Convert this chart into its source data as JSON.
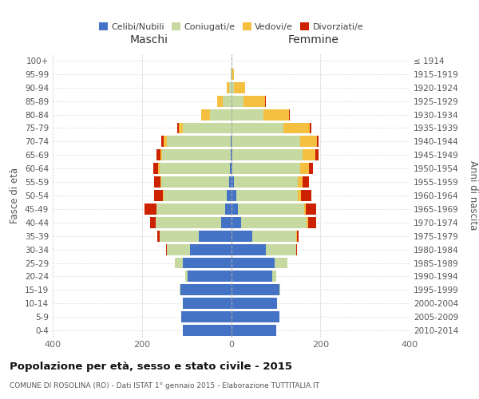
{
  "age_groups": [
    "0-4",
    "5-9",
    "10-14",
    "15-19",
    "20-24",
    "25-29",
    "30-34",
    "35-39",
    "40-44",
    "45-49",
    "50-54",
    "55-59",
    "60-64",
    "65-69",
    "70-74",
    "75-79",
    "80-84",
    "85-89",
    "90-94",
    "95-99",
    "100+"
  ],
  "birth_years": [
    "2010-2014",
    "2005-2009",
    "2000-2004",
    "1995-1999",
    "1990-1994",
    "1985-1989",
    "1980-1984",
    "1975-1979",
    "1970-1974",
    "1965-1969",
    "1960-1964",
    "1955-1959",
    "1950-1954",
    "1945-1949",
    "1940-1944",
    "1935-1939",
    "1930-1934",
    "1925-1929",
    "1920-1924",
    "1915-1919",
    "≤ 1914"
  ],
  "male_celibi": [
    108,
    112,
    108,
    113,
    98,
    108,
    92,
    72,
    22,
    14,
    9,
    4,
    2,
    1,
    1,
    0,
    0,
    0,
    0,
    0,
    0
  ],
  "male_coniugati": [
    0,
    0,
    0,
    2,
    5,
    18,
    52,
    88,
    148,
    153,
    143,
    152,
    158,
    153,
    143,
    108,
    48,
    18,
    4,
    1,
    0
  ],
  "male_vedovi": [
    0,
    0,
    0,
    0,
    0,
    0,
    0,
    0,
    0,
    0,
    1,
    2,
    3,
    5,
    8,
    10,
    20,
    14,
    5,
    0,
    0
  ],
  "male_divorziati": [
    0,
    0,
    0,
    0,
    0,
    1,
    2,
    5,
    12,
    28,
    19,
    14,
    11,
    8,
    5,
    2,
    0,
    0,
    0,
    0,
    0
  ],
  "female_celibi": [
    102,
    108,
    103,
    108,
    93,
    98,
    78,
    48,
    22,
    16,
    11,
    7,
    3,
    2,
    1,
    0,
    0,
    0,
    0,
    0,
    0
  ],
  "female_coniugati": [
    0,
    0,
    0,
    2,
    9,
    28,
    68,
    98,
    148,
    148,
    138,
    143,
    152,
    158,
    153,
    118,
    72,
    28,
    7,
    1,
    0
  ],
  "female_vedovi": [
    0,
    0,
    0,
    0,
    0,
    0,
    0,
    1,
    2,
    3,
    7,
    11,
    19,
    29,
    38,
    58,
    58,
    48,
    24,
    5,
    1
  ],
  "female_divorziati": [
    0,
    0,
    0,
    0,
    0,
    1,
    2,
    5,
    18,
    24,
    24,
    14,
    9,
    7,
    4,
    3,
    2,
    1,
    0,
    0,
    0
  ],
  "colors": {
    "celibi": "#4472C4",
    "coniugati": "#c5d9a0",
    "vedovi": "#f5c040",
    "divorziati": "#cc2200"
  },
  "xlim": 400,
  "title": "Popolazione per età, sesso e stato civile - 2015",
  "subtitle": "COMUNE DI ROSOLINA (RO) - Dati ISTAT 1° gennaio 2015 - Elaborazione TUTTITALIA.IT",
  "ylabel_left": "Fasce di età",
  "ylabel_right": "Anni di nascita",
  "maschi_label": "Maschi",
  "femmine_label": "Femmine"
}
